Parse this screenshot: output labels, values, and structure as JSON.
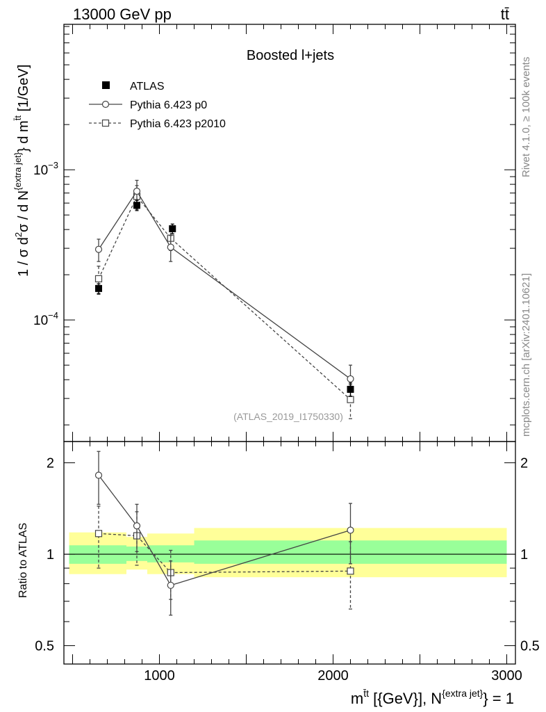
{
  "header": {
    "left": "13000 GeV pp",
    "right": "tt̄"
  },
  "side_labels": {
    "rivet": "Rivet 4.1.0, ≥ 100k events",
    "mcplots": "mcplots.cern.ch [arXiv:2401.10621]"
  },
  "chart_data": [
    {
      "type": "scatter",
      "panel": "main",
      "title": "Boosted l+jets",
      "analysis_tag": "(ATLAS_2019_I1750330)",
      "ylabel": "1 / σ d²σ / d N{extra jet} d m{tt̄} [1/GeV]",
      "ylabel_parts": {
        "a": "1 / σ d",
        "a_sup": "2",
        "b": "σ / d N",
        "b_sup": "{extra jet}",
        "c": "} d m",
        "c_sup": "t̄t",
        "d": " [1/GeV]"
      },
      "yscale": "log",
      "ylim": [
        1.55e-05,
        0.0093
      ],
      "xlim": [
        450,
        3050
      ],
      "yticks": [
        {
          "value": 0.001,
          "base": "10",
          "exp": "−3"
        },
        {
          "value": 0.0001,
          "base": "10",
          "exp": "−4"
        }
      ],
      "legend": [
        {
          "label": "ATLAS",
          "marker": "filled-square",
          "line": "none"
        },
        {
          "label": "Pythia 6.423 p0",
          "marker": "open-circle",
          "line": "solid"
        },
        {
          "label": "Pythia 6.423 p2010",
          "marker": "open-square",
          "line": "dashed"
        }
      ],
      "legend_position": "top-left",
      "series": [
        {
          "name": "ATLAS",
          "x": [
            650,
            870,
            1075,
            2100
          ],
          "y": [
            0.000162,
            0.00058,
            0.000405,
            3.45e-05
          ],
          "err": [
            1.2e-05,
            4.5e-05,
            3e-05,
            3.5e-06
          ]
        },
        {
          "name": "Pythia 6.423 p0",
          "x": [
            650,
            870,
            1065,
            2100
          ],
          "y": [
            0.000295,
            0.00072,
            0.000305,
            4.05e-05
          ],
          "err": [
            5e-05,
            0.00013,
            6e-05,
            9.5e-06
          ]
        },
        {
          "name": "Pythia 6.423 p2010",
          "x": [
            650,
            870,
            1065,
            2100
          ],
          "y": [
            0.000188,
            0.000665,
            0.00035,
            2.95e-05
          ],
          "err": [
            4e-05,
            0.00012,
            6e-05,
            7.5e-06
          ]
        }
      ]
    },
    {
      "type": "scatter",
      "panel": "ratio",
      "ylabel": "Ratio to ATLAS",
      "yscale": "log",
      "ylim": [
        0.435,
        2.35
      ],
      "xlim": [
        450,
        3050
      ],
      "reference": 1,
      "yticks": [
        {
          "value": 2,
          "label": "2"
        },
        {
          "value": 1,
          "label": "1"
        },
        {
          "value": 0.5,
          "label": "0.5"
        }
      ],
      "xticks": [
        {
          "value": 1000,
          "label": "1000"
        },
        {
          "value": 2000,
          "label": "2000"
        },
        {
          "value": 3000,
          "label": "3000"
        }
      ],
      "xlabel_parts": {
        "a": "m",
        "a_sup": "t̄t",
        "b": " [{GeV}], N",
        "b_sup": "{extra jet}",
        "c": "} = 1"
      },
      "bands": [
        {
          "x0": 480,
          "x1": 810,
          "inner": [
            0.93,
            1.07
          ],
          "outer": [
            0.86,
            1.18
          ]
        },
        {
          "x0": 810,
          "x1": 930,
          "inner": [
            0.95,
            1.06
          ],
          "outer": [
            0.89,
            1.14
          ]
        },
        {
          "x0": 930,
          "x1": 1200,
          "inner": [
            0.94,
            1.07
          ],
          "outer": [
            0.86,
            1.17
          ]
        },
        {
          "x0": 1200,
          "x1": 3000,
          "inner": [
            0.93,
            1.11
          ],
          "outer": [
            0.84,
            1.22
          ]
        }
      ],
      "series": [
        {
          "name": "Pythia 6.423 p0",
          "x": [
            650,
            870,
            1065,
            2100
          ],
          "y": [
            1.82,
            1.24,
            0.79,
            1.2
          ],
          "err": [
            0.36,
            0.22,
            0.16,
            0.27
          ]
        },
        {
          "name": "Pythia 6.423 p2010",
          "x": [
            650,
            870,
            1065,
            2100
          ],
          "y": [
            1.17,
            1.15,
            0.87,
            0.88
          ],
          "err": [
            0.27,
            0.23,
            0.16,
            0.22
          ]
        }
      ]
    }
  ]
}
